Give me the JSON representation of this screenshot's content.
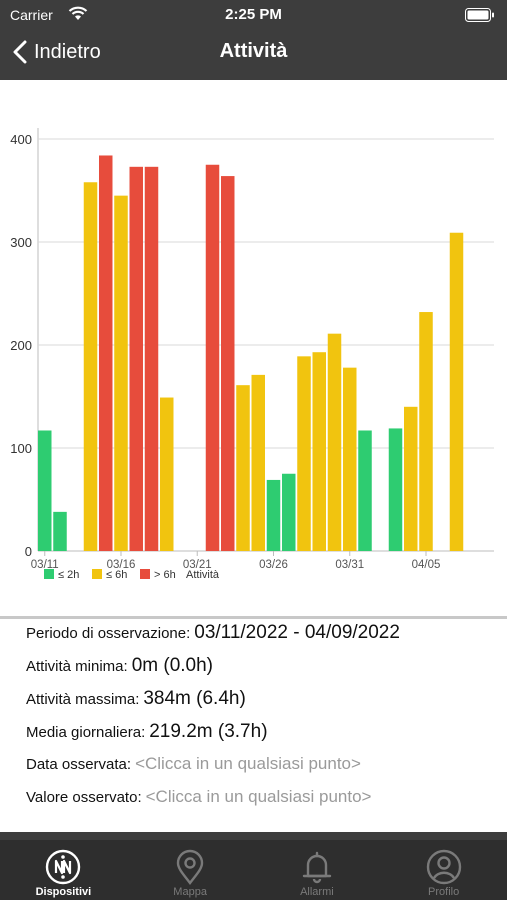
{
  "status_bar": {
    "carrier": "Carrier",
    "time": "2:25 PM"
  },
  "nav": {
    "back_label": "Indietro",
    "title": "Attività"
  },
  "chart_data": {
    "type": "bar",
    "x_ticks": [
      "03/11",
      "03/16",
      "03/21",
      "03/26",
      "03/31",
      "04/05"
    ],
    "ylim": [
      0,
      400
    ],
    "y_ticks": [
      "0",
      "100",
      "200",
      "300",
      "400"
    ],
    "grid": true,
    "legend": [
      "≤ 2h",
      "≤ 6h",
      "> 6h",
      "Attività"
    ],
    "colors": {
      "low": "#2ecc71",
      "mid": "#f1c40f",
      "high": "#e74c3c"
    },
    "bars": [
      {
        "date": "03/11",
        "value": 117,
        "cat": "low"
      },
      {
        "date": "03/12",
        "value": 38,
        "cat": "low"
      },
      {
        "date": "03/13",
        "value": 0,
        "cat": "low"
      },
      {
        "date": "03/14",
        "value": 358,
        "cat": "mid"
      },
      {
        "date": "03/15",
        "value": 384,
        "cat": "high"
      },
      {
        "date": "03/16",
        "value": 345,
        "cat": "mid"
      },
      {
        "date": "03/17",
        "value": 373,
        "cat": "high"
      },
      {
        "date": "03/18",
        "value": 373,
        "cat": "high"
      },
      {
        "date": "03/19",
        "value": 149,
        "cat": "mid"
      },
      {
        "date": "03/20",
        "value": 0,
        "cat": "low"
      },
      {
        "date": "03/21",
        "value": 0,
        "cat": "low"
      },
      {
        "date": "03/22",
        "value": 375,
        "cat": "high"
      },
      {
        "date": "03/23",
        "value": 364,
        "cat": "high"
      },
      {
        "date": "03/24",
        "value": 161,
        "cat": "mid"
      },
      {
        "date": "03/25",
        "value": 171,
        "cat": "mid"
      },
      {
        "date": "03/26",
        "value": 69,
        "cat": "low"
      },
      {
        "date": "03/27",
        "value": 75,
        "cat": "low"
      },
      {
        "date": "03/28",
        "value": 189,
        "cat": "mid"
      },
      {
        "date": "03/29",
        "value": 193,
        "cat": "mid"
      },
      {
        "date": "03/30",
        "value": 211,
        "cat": "mid"
      },
      {
        "date": "03/31",
        "value": 178,
        "cat": "mid"
      },
      {
        "date": "04/01",
        "value": 117,
        "cat": "low"
      },
      {
        "date": "04/02",
        "value": 0,
        "cat": "low"
      },
      {
        "date": "04/03",
        "value": 119,
        "cat": "low"
      },
      {
        "date": "04/04",
        "value": 140,
        "cat": "mid"
      },
      {
        "date": "04/05",
        "value": 232,
        "cat": "mid"
      },
      {
        "date": "04/06",
        "value": 0,
        "cat": "low"
      },
      {
        "date": "04/07",
        "value": 309,
        "cat": "mid"
      }
    ]
  },
  "stats": {
    "period_label": "Periodo di osservazione:",
    "period_value": "03/11/2022 - 04/09/2022",
    "min_label": "Attività minima:",
    "min_value": "0m (0.0h)",
    "max_label": "Attività massima:",
    "max_value": "384m (6.4h)",
    "avg_label": "Media giornaliera:",
    "avg_value": "219.2m (3.7h)",
    "observed_date_label": "Data osservata:",
    "observed_date_placeholder": "<Clicca in un qualsiasi punto>",
    "observed_value_label": "Valore osservato:",
    "observed_value_placeholder": "<Clicca in un qualsiasi punto>"
  },
  "tabs": [
    {
      "label": "Dispositivi",
      "icon": "devices-icon",
      "active": true
    },
    {
      "label": "Mappa",
      "icon": "map-pin-icon",
      "active": false
    },
    {
      "label": "Allarmi",
      "icon": "bell-icon",
      "active": false
    },
    {
      "label": "Profilo",
      "icon": "user-icon",
      "active": false
    }
  ]
}
